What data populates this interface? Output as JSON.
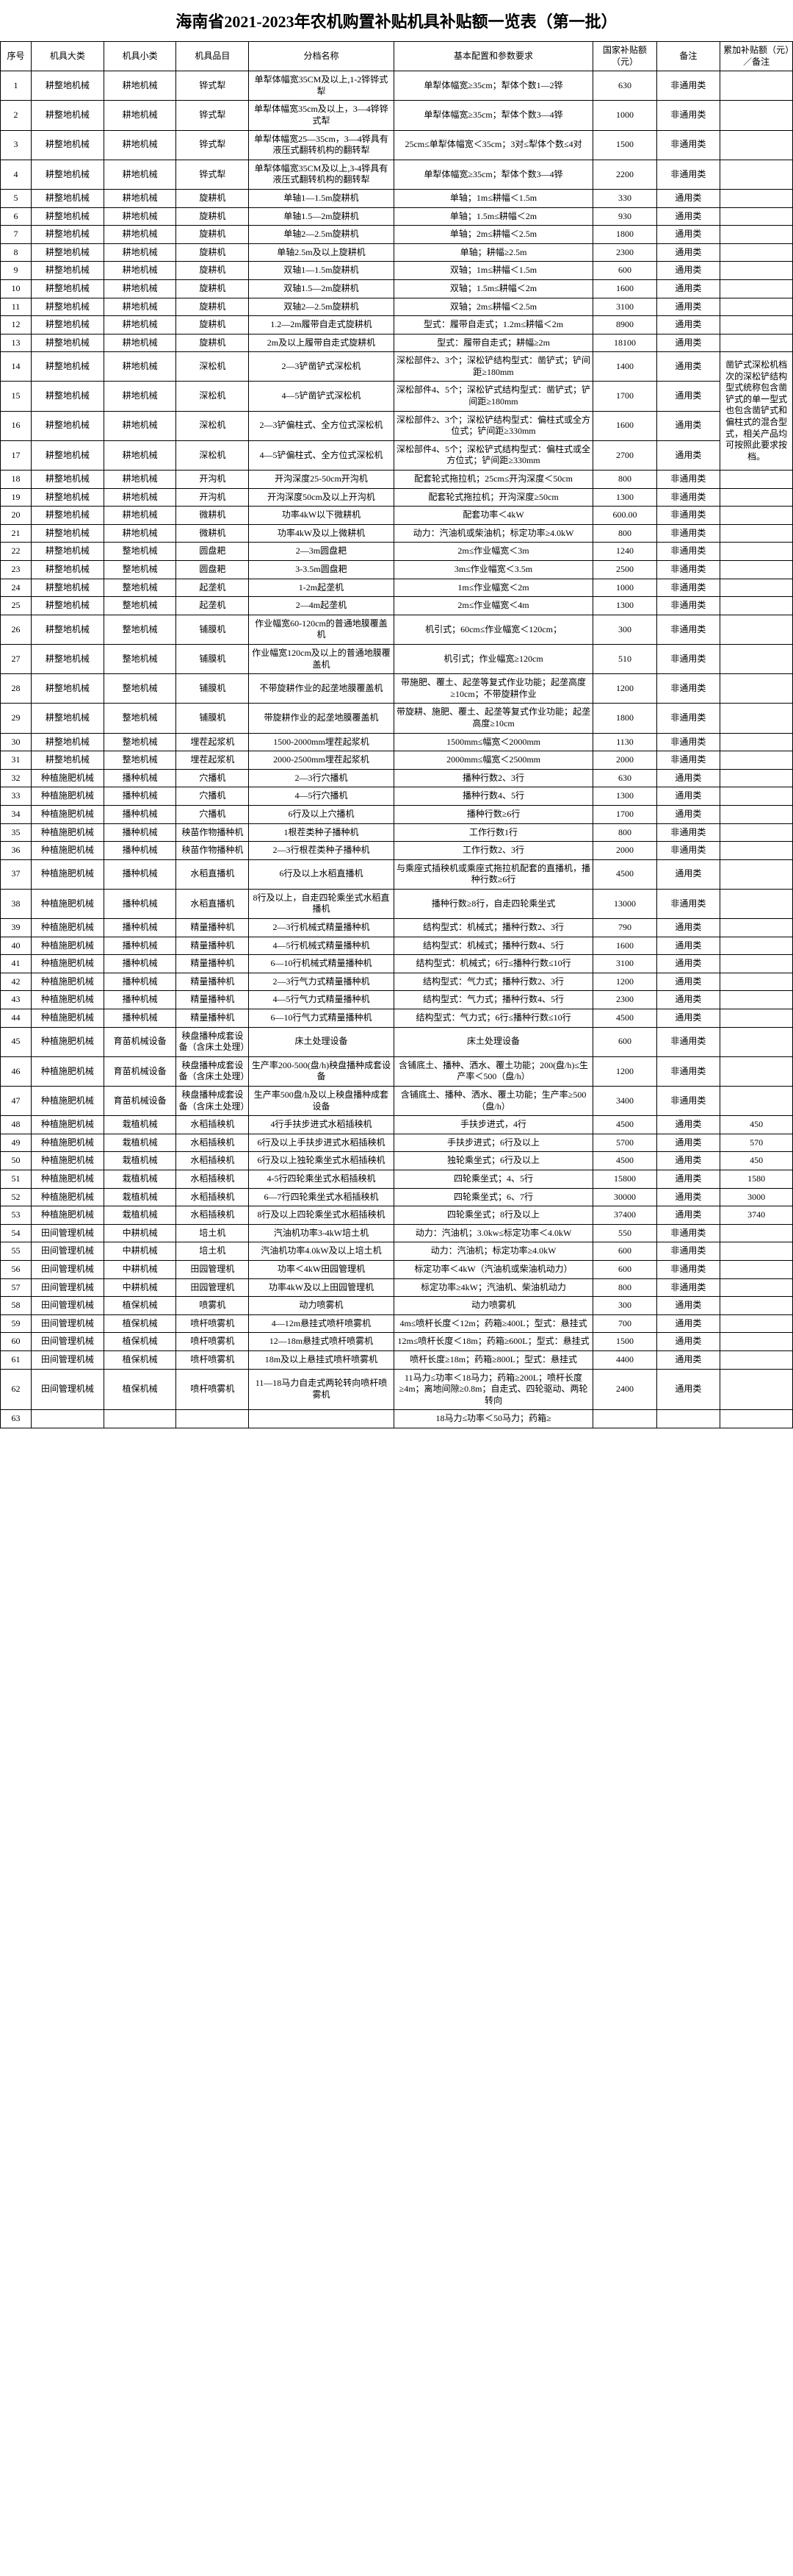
{
  "title": "海南省2021-2023年农机购置补贴机具补贴额一览表（第一批）",
  "headers": {
    "seq": "序号",
    "cat1": "机具大类",
    "cat2": "机具小类",
    "item": "机具品目",
    "tier": "分档名称",
    "spec": "基本配置和参数要求",
    "sub": "国家补贴额（元）",
    "note": "备注",
    "extra": "累加补贴额（元）／备注"
  },
  "notes": {
    "general": "通用类",
    "nongeneral": "非通用类"
  },
  "rows": [
    {
      "seq": "1",
      "cat1": "耕整地机械",
      "cat2": "耕地机械",
      "item": "铧式犁",
      "tier": "单犁体幅宽35CM及以上,1-2铧铧式犁",
      "spec": "单犁体幅宽≥35cm；犁体个数1—2铧",
      "sub": "630",
      "note": "非通用类",
      "extra": ""
    },
    {
      "seq": "2",
      "cat1": "耕整地机械",
      "cat2": "耕地机械",
      "item": "铧式犁",
      "tier": "单犁体幅宽35cm及以上，3—4铧铧式犁",
      "spec": "单犁体幅宽≥35cm；犁体个数3—4铧",
      "sub": "1000",
      "note": "非通用类",
      "extra": ""
    },
    {
      "seq": "3",
      "cat1": "耕整地机械",
      "cat2": "耕地机械",
      "item": "铧式犁",
      "tier": "单犁体幅宽25—35cm，3—4铧具有液压式翻转机构的翻转犁",
      "spec": "25cm≤单犁体幅宽＜35cm；3对≤犁体个数≤4对",
      "sub": "1500",
      "note": "非通用类",
      "extra": ""
    },
    {
      "seq": "4",
      "cat1": "耕整地机械",
      "cat2": "耕地机械",
      "item": "铧式犁",
      "tier": "单犁体幅宽35CM及以上,3-4铧具有液压式翻转机构的翻转犁",
      "spec": "单犁体幅宽≥35cm；犁体个数3—4铧",
      "sub": "2200",
      "note": "非通用类",
      "extra": ""
    },
    {
      "seq": "5",
      "cat1": "耕整地机械",
      "cat2": "耕地机械",
      "item": "旋耕机",
      "tier": "单轴1—1.5m旋耕机",
      "spec": "单轴；1m≤耕幅＜1.5m",
      "sub": "330",
      "note": "通用类",
      "extra": ""
    },
    {
      "seq": "6",
      "cat1": "耕整地机械",
      "cat2": "耕地机械",
      "item": "旋耕机",
      "tier": "单轴1.5—2m旋耕机",
      "spec": "单轴；1.5m≤耕幅＜2m",
      "sub": "930",
      "note": "通用类",
      "extra": ""
    },
    {
      "seq": "7",
      "cat1": "耕整地机械",
      "cat2": "耕地机械",
      "item": "旋耕机",
      "tier": "单轴2—2.5m旋耕机",
      "spec": "单轴；2m≤耕幅＜2.5m",
      "sub": "1800",
      "note": "通用类",
      "extra": ""
    },
    {
      "seq": "8",
      "cat1": "耕整地机械",
      "cat2": "耕地机械",
      "item": "旋耕机",
      "tier": "单轴2.5m及以上旋耕机",
      "spec": "单轴；耕幅≥2.5m",
      "sub": "2300",
      "note": "通用类",
      "extra": ""
    },
    {
      "seq": "9",
      "cat1": "耕整地机械",
      "cat2": "耕地机械",
      "item": "旋耕机",
      "tier": "双轴1—1.5m旋耕机",
      "spec": "双轴；1m≤耕幅＜1.5m",
      "sub": "600",
      "note": "通用类",
      "extra": ""
    },
    {
      "seq": "10",
      "cat1": "耕整地机械",
      "cat2": "耕地机械",
      "item": "旋耕机",
      "tier": "双轴1.5—2m旋耕机",
      "spec": "双轴；1.5m≤耕幅＜2m",
      "sub": "1600",
      "note": "通用类",
      "extra": ""
    },
    {
      "seq": "11",
      "cat1": "耕整地机械",
      "cat2": "耕地机械",
      "item": "旋耕机",
      "tier": "双轴2—2.5m旋耕机",
      "spec": "双轴；2m≤耕幅＜2.5m",
      "sub": "3100",
      "note": "通用类",
      "extra": ""
    },
    {
      "seq": "12",
      "cat1": "耕整地机械",
      "cat2": "耕地机械",
      "item": "旋耕机",
      "tier": "1.2—2m履带自走式旋耕机",
      "spec": "型式：履带自走式；1.2m≤耕幅＜2m",
      "sub": "8900",
      "note": "通用类",
      "extra": ""
    },
    {
      "seq": "13",
      "cat1": "耕整地机械",
      "cat2": "耕地机械",
      "item": "旋耕机",
      "tier": "2m及以上履带自走式旋耕机",
      "spec": "型式：履带自走式；耕幅≥2m",
      "sub": "18100",
      "note": "通用类",
      "extra": ""
    },
    {
      "seq": "14",
      "cat1": "耕整地机械",
      "cat2": "耕地机械",
      "item": "深松机",
      "tier": "2—3铲凿铲式深松机",
      "spec": "深松部件2、3个；深松铲结构型式：凿铲式；铲间距≥180mm",
      "sub": "1400",
      "note": "通用类",
      "extra": ""
    },
    {
      "seq": "15",
      "cat1": "耕整地机械",
      "cat2": "耕地机械",
      "item": "深松机",
      "tier": "4—5铲凿铲式深松机",
      "spec": "深松部件4、5个；深松铲式结构型式：凿铲式；铲间距≥180mm",
      "sub": "1700",
      "note": "通用类",
      "extra": ""
    },
    {
      "seq": "16",
      "cat1": "耕整地机械",
      "cat2": "耕地机械",
      "item": "深松机",
      "tier": "2—3铲偏柱式、全方位式深松机",
      "spec": "深松部件2、3个；深松铲结构型式：偏柱式或全方位式；铲间距≥330mm",
      "sub": "1600",
      "note": "通用类",
      "extra": ""
    },
    {
      "seq": "17",
      "cat1": "耕整地机械",
      "cat2": "耕地机械",
      "item": "深松机",
      "tier": "4—5铲偏柱式、全方位式深松机",
      "spec": "深松部件4、5个；深松铲式结构型式：偏柱式或全方位式；铲间距≥330mm",
      "sub": "2700",
      "note": "通用类",
      "extra": ""
    },
    {
      "seq": "18",
      "cat1": "耕整地机械",
      "cat2": "耕地机械",
      "item": "开沟机",
      "tier": "开沟深度25-50cm开沟机",
      "spec": "配套轮式拖拉机；25cm≤开沟深度＜50cm",
      "sub": "800",
      "note": "非通用类",
      "extra": ""
    },
    {
      "seq": "19",
      "cat1": "耕整地机械",
      "cat2": "耕地机械",
      "item": "开沟机",
      "tier": "开沟深度50cm及以上开沟机",
      "spec": "配套轮式拖拉机；开沟深度≥50cm",
      "sub": "1300",
      "note": "非通用类",
      "extra": ""
    },
    {
      "seq": "20",
      "cat1": "耕整地机械",
      "cat2": "耕地机械",
      "item": "微耕机",
      "tier": "功率4kW以下微耕机",
      "spec": "配套功率＜4kW",
      "sub": "600.00",
      "note": "非通用类",
      "extra": ""
    },
    {
      "seq": "21",
      "cat1": "耕整地机械",
      "cat2": "耕地机械",
      "item": "微耕机",
      "tier": "功率4kW及以上微耕机",
      "spec": "动力：汽油机或柴油机；标定功率≥4.0kW",
      "sub": "800",
      "note": "非通用类",
      "extra": ""
    },
    {
      "seq": "22",
      "cat1": "耕整地机械",
      "cat2": "整地机械",
      "item": "圆盘耙",
      "tier": "2—3m圆盘耙",
      "spec": "2m≤作业幅宽＜3m",
      "sub": "1240",
      "note": "非通用类",
      "extra": ""
    },
    {
      "seq": "23",
      "cat1": "耕整地机械",
      "cat2": "整地机械",
      "item": "圆盘耙",
      "tier": "3-3.5m圆盘耙",
      "spec": "3m≤作业幅宽＜3.5m",
      "sub": "2500",
      "note": "非通用类",
      "extra": ""
    },
    {
      "seq": "24",
      "cat1": "耕整地机械",
      "cat2": "整地机械",
      "item": "起垄机",
      "tier": "1-2m起垄机",
      "spec": "1m≤作业幅宽＜2m",
      "sub": "1000",
      "note": "非通用类",
      "extra": ""
    },
    {
      "seq": "25",
      "cat1": "耕整地机械",
      "cat2": "整地机械",
      "item": "起垄机",
      "tier": "2—4m起垄机",
      "spec": "2m≤作业幅宽＜4m",
      "sub": "1300",
      "note": "非通用类",
      "extra": ""
    },
    {
      "seq": "26",
      "cat1": "耕整地机械",
      "cat2": "整地机械",
      "item": "铺膜机",
      "tier": "作业幅宽60-120cm的普通地膜覆盖机",
      "spec": "机引式；60cm≤作业幅宽＜120cm；",
      "sub": "300",
      "note": "非通用类",
      "extra": ""
    },
    {
      "seq": "27",
      "cat1": "耕整地机械",
      "cat2": "整地机械",
      "item": "铺膜机",
      "tier": "作业幅宽120cm及以上的普通地膜覆盖机",
      "spec": "机引式；作业幅宽≥120cm",
      "sub": "510",
      "note": "非通用类",
      "extra": ""
    },
    {
      "seq": "28",
      "cat1": "耕整地机械",
      "cat2": "整地机械",
      "item": "铺膜机",
      "tier": "不带旋耕作业的起垄地膜覆盖机",
      "spec": "带施肥、覆土、起垄等复式作业功能；起垄高度≥10cm；不带旋耕作业",
      "sub": "1200",
      "note": "非通用类",
      "extra": ""
    },
    {
      "seq": "29",
      "cat1": "耕整地机械",
      "cat2": "整地机械",
      "item": "铺膜机",
      "tier": "带旋耕作业的起垄地膜覆盖机",
      "spec": "带旋耕、施肥、覆土、起垄等复式作业功能；起垄高度≥10cm",
      "sub": "1800",
      "note": "非通用类",
      "extra": ""
    },
    {
      "seq": "30",
      "cat1": "耕整地机械",
      "cat2": "整地机械",
      "item": "埋茬起浆机",
      "tier": "1500-2000mm埋茬起浆机",
      "spec": "1500mm≤幅宽＜2000mm",
      "sub": "1130",
      "note": "非通用类",
      "extra": ""
    },
    {
      "seq": "31",
      "cat1": "耕整地机械",
      "cat2": "整地机械",
      "item": "埋茬起浆机",
      "tier": "2000-2500mm埋茬起浆机",
      "spec": "2000mm≤幅宽＜2500mm",
      "sub": "2000",
      "note": "非通用类",
      "extra": ""
    },
    {
      "seq": "32",
      "cat1": "种植施肥机械",
      "cat2": "播种机械",
      "item": "穴播机",
      "tier": "2—3行穴播机",
      "spec": "播种行数2、3行",
      "sub": "630",
      "note": "通用类",
      "extra": ""
    },
    {
      "seq": "33",
      "cat1": "种植施肥机械",
      "cat2": "播种机械",
      "item": "穴播机",
      "tier": "4—5行穴播机",
      "spec": "播种行数4、5行",
      "sub": "1300",
      "note": "通用类",
      "extra": ""
    },
    {
      "seq": "34",
      "cat1": "种植施肥机械",
      "cat2": "播种机械",
      "item": "穴播机",
      "tier": "6行及以上穴播机",
      "spec": "播种行数≥6行",
      "sub": "1700",
      "note": "通用类",
      "extra": ""
    },
    {
      "seq": "35",
      "cat1": "种植施肥机械",
      "cat2": "播种机械",
      "item": "秧苗作物播种机",
      "tier": "1根茬类种子播种机",
      "spec": "工作行数1行",
      "sub": "800",
      "note": "非通用类",
      "extra": ""
    },
    {
      "seq": "36",
      "cat1": "种植施肥机械",
      "cat2": "播种机械",
      "item": "秧苗作物播种机",
      "tier": "2—3行根茬类种子播种机",
      "spec": "工作行数2、3行",
      "sub": "2000",
      "note": "非通用类",
      "extra": ""
    },
    {
      "seq": "37",
      "cat1": "种植施肥机械",
      "cat2": "播种机械",
      "item": "水稻直播机",
      "tier": "6行及以上水稻直播机",
      "spec": "与乘座式插秧机或乘座式拖拉机配套的直播机，播种行数≥6行",
      "sub": "4500",
      "note": "通用类",
      "extra": ""
    },
    {
      "seq": "38",
      "cat1": "种植施肥机械",
      "cat2": "播种机械",
      "item": "水稻直播机",
      "tier": "8行及以上，自走四轮乘坐式水稻直播机",
      "spec": "播种行数≥8行，自走四轮乘坐式",
      "sub": "13000",
      "note": "非通用类",
      "extra": ""
    },
    {
      "seq": "39",
      "cat1": "种植施肥机械",
      "cat2": "播种机械",
      "item": "精量播种机",
      "tier": "2—3行机械式精量播种机",
      "spec": "结构型式：机械式；播种行数2、3行",
      "sub": "790",
      "note": "通用类",
      "extra": ""
    },
    {
      "seq": "40",
      "cat1": "种植施肥机械",
      "cat2": "播种机械",
      "item": "精量播种机",
      "tier": "4—5行机械式精量播种机",
      "spec": "结构型式：机械式；播种行数4、5行",
      "sub": "1600",
      "note": "通用类",
      "extra": ""
    },
    {
      "seq": "41",
      "cat1": "种植施肥机械",
      "cat2": "播种机械",
      "item": "精量播种机",
      "tier": "6—10行机械式精量播种机",
      "spec": "结构型式：机械式；6行≤播种行数≤10行",
      "sub": "3100",
      "note": "通用类",
      "extra": ""
    },
    {
      "seq": "42",
      "cat1": "种植施肥机械",
      "cat2": "播种机械",
      "item": "精量播种机",
      "tier": "2—3行气力式精量播种机",
      "spec": "结构型式：气力式；播种行数2、3行",
      "sub": "1200",
      "note": "通用类",
      "extra": ""
    },
    {
      "seq": "43",
      "cat1": "种植施肥机械",
      "cat2": "播种机械",
      "item": "精量播种机",
      "tier": "4—5行气力式精量播种机",
      "spec": "结构型式：气力式；播种行数4、5行",
      "sub": "2300",
      "note": "通用类",
      "extra": ""
    },
    {
      "seq": "44",
      "cat1": "种植施肥机械",
      "cat2": "播种机械",
      "item": "精量播种机",
      "tier": "6—10行气力式精量播种机",
      "spec": "结构型式：气力式；6行≤播种行数≤10行",
      "sub": "4500",
      "note": "通用类",
      "extra": ""
    },
    {
      "seq": "45",
      "cat1": "种植施肥机械",
      "cat2": "育苗机械设备",
      "item": "秧盘播种成套设备（含床土处理）",
      "tier": "床土处理设备",
      "spec": "床土处理设备",
      "sub": "600",
      "note": "非通用类",
      "extra": ""
    },
    {
      "seq": "46",
      "cat1": "种植施肥机械",
      "cat2": "育苗机械设备",
      "item": "秧盘播种成套设备（含床土处理）",
      "tier": "生产率200-500(盘/h)秧盘播种成套设备",
      "spec": "含铺底土、播种、洒水、覆土功能；200(盘/h)≤生产率＜500（盘/h）",
      "sub": "1200",
      "note": "非通用类",
      "extra": ""
    },
    {
      "seq": "47",
      "cat1": "种植施肥机械",
      "cat2": "育苗机械设备",
      "item": "秧盘播种成套设备（含床土处理）",
      "tier": "生产率500盘/h及以上秧盘播种成套设备",
      "spec": "含铺底土、播种、洒水、覆土功能；生产率≥500（盘/h）",
      "sub": "3400",
      "note": "非通用类",
      "extra": ""
    },
    {
      "seq": "48",
      "cat1": "种植施肥机械",
      "cat2": "栽植机械",
      "item": "水稻插秧机",
      "tier": "4行手扶步进式水稻插秧机",
      "spec": "手扶步进式，4行",
      "sub": "4500",
      "note": "通用类",
      "extra": "450"
    },
    {
      "seq": "49",
      "cat1": "种植施肥机械",
      "cat2": "栽植机械",
      "item": "水稻插秧机",
      "tier": "6行及以上手扶步进式水稻插秧机",
      "spec": "手扶步进式；6行及以上",
      "sub": "5700",
      "note": "通用类",
      "extra": "570"
    },
    {
      "seq": "50",
      "cat1": "种植施肥机械",
      "cat2": "栽植机械",
      "item": "水稻插秧机",
      "tier": "6行及以上独轮乘坐式水稻插秧机",
      "spec": "独轮乘坐式；6行及以上",
      "sub": "4500",
      "note": "通用类",
      "extra": "450"
    },
    {
      "seq": "51",
      "cat1": "种植施肥机械",
      "cat2": "栽植机械",
      "item": "水稻插秧机",
      "tier": "4-5行四轮乘坐式水稻插秧机",
      "spec": "四轮乘坐式；4、5行",
      "sub": "15800",
      "note": "通用类",
      "extra": "1580"
    },
    {
      "seq": "52",
      "cat1": "种植施肥机械",
      "cat2": "栽植机械",
      "item": "水稻插秧机",
      "tier": "6—7行四轮乘坐式水稻插秧机",
      "spec": "四轮乘坐式；6、7行",
      "sub": "30000",
      "note": "通用类",
      "extra": "3000"
    },
    {
      "seq": "53",
      "cat1": "种植施肥机械",
      "cat2": "栽植机械",
      "item": "水稻插秧机",
      "tier": "8行及以上四轮乘坐式水稻插秧机",
      "spec": "四轮乘坐式；8行及以上",
      "sub": "37400",
      "note": "通用类",
      "extra": "3740"
    },
    {
      "seq": "54",
      "cat1": "田间管理机械",
      "cat2": "中耕机械",
      "item": "培土机",
      "tier": "汽油机功率3-4kW培土机",
      "spec": "动力：汽油机；3.0kw≤标定功率＜4.0kW",
      "sub": "550",
      "note": "非通用类",
      "extra": ""
    },
    {
      "seq": "55",
      "cat1": "田间管理机械",
      "cat2": "中耕机械",
      "item": "培土机",
      "tier": "汽油机功率4.0kW及以上培土机",
      "spec": "动力：汽油机；标定功率≥4.0kW",
      "sub": "600",
      "note": "非通用类",
      "extra": ""
    },
    {
      "seq": "56",
      "cat1": "田间管理机械",
      "cat2": "中耕机械",
      "item": "田园管理机",
      "tier": "功率＜4kW田园管理机",
      "spec": "标定功率＜4kW（汽油机或柴油机动力）",
      "sub": "600",
      "note": "非通用类",
      "extra": ""
    },
    {
      "seq": "57",
      "cat1": "田间管理机械",
      "cat2": "中耕机械",
      "item": "田园管理机",
      "tier": "功率4kW及以上田园管理机",
      "spec": "标定功率≥4kW；汽油机、柴油机动力",
      "sub": "800",
      "note": "非通用类",
      "extra": ""
    },
    {
      "seq": "58",
      "cat1": "田间管理机械",
      "cat2": "植保机械",
      "item": "喷雾机",
      "tier": "动力喷雾机",
      "spec": "动力喷雾机",
      "sub": "300",
      "note": "通用类",
      "extra": ""
    },
    {
      "seq": "59",
      "cat1": "田间管理机械",
      "cat2": "植保机械",
      "item": "喷杆喷雾机",
      "tier": "4—12m悬挂式喷杆喷雾机",
      "spec": "4m≤喷杆长度＜12m；药箱≥400L；型式：悬挂式",
      "sub": "700",
      "note": "通用类",
      "extra": ""
    },
    {
      "seq": "60",
      "cat1": "田间管理机械",
      "cat2": "植保机械",
      "item": "喷杆喷雾机",
      "tier": "12—18m悬挂式喷杆喷雾机",
      "spec": "12m≤喷杆长度＜18m；药箱≥600L；型式：悬挂式",
      "sub": "1500",
      "note": "通用类",
      "extra": ""
    },
    {
      "seq": "61",
      "cat1": "田间管理机械",
      "cat2": "植保机械",
      "item": "喷杆喷雾机",
      "tier": "18m及以上悬挂式喷杆喷雾机",
      "spec": "喷杆长度≥18m；药箱≥800L；型式：悬挂式",
      "sub": "4400",
      "note": "通用类",
      "extra": ""
    },
    {
      "seq": "62",
      "cat1": "田间管理机械",
      "cat2": "植保机械",
      "item": "喷杆喷雾机",
      "tier": "11—18马力自走式两轮转向喷杆喷雾机",
      "spec": "11马力≤功率＜18马力；药箱≥200L；喷杆长度≥4m；离地间隙≥0.8m；自走式、四轮驱动、两轮转向",
      "sub": "2400",
      "note": "通用类",
      "extra": ""
    },
    {
      "seq": "63",
      "cat1": "",
      "cat2": "",
      "item": "",
      "tier": "",
      "spec": "18马力≤功率＜50马力；药箱≥",
      "sub": "",
      "note": "",
      "extra": ""
    }
  ],
  "rowspan_note_14_17": "凿铲式深松机档次的深松铲结构型式统称包含凿铲式的单一型式也包含凿铲式和偏柱式的混合型式，相关产品均可按照此要求按档。"
}
